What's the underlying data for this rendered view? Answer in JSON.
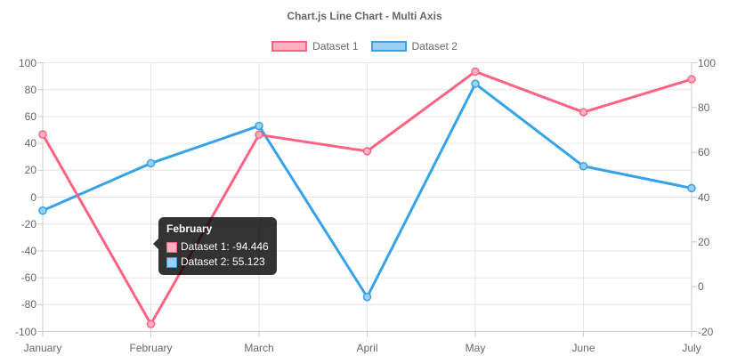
{
  "title": "Chart.js Line Chart - Multi Axis",
  "legend": {
    "items": [
      {
        "label": "Dataset 1",
        "border": "#ff6384",
        "fill": "#ffb1c1"
      },
      {
        "label": "Dataset 2",
        "border": "#36a2eb",
        "fill": "#9ad0f5"
      }
    ]
  },
  "tooltip": {
    "title": "February",
    "rows": [
      {
        "label": "Dataset 1: -94.446",
        "border": "#ff6384",
        "fill": "#ffb1c1"
      },
      {
        "label": "Dataset 2: 55.123",
        "border": "#36a2eb",
        "fill": "#9ad0f5"
      }
    ]
  },
  "chart_data": {
    "type": "line",
    "title": "Chart.js Line Chart - Multi Axis",
    "categories": [
      "January",
      "February",
      "March",
      "April",
      "May",
      "June",
      "July"
    ],
    "series": [
      {
        "name": "Dataset 1",
        "axis": "left",
        "color": "#ff6384",
        "fill": "#ffb1c1",
        "values": [
          46.7,
          -94.446,
          46.4,
          34.2,
          93.4,
          63.2,
          87.7
        ]
      },
      {
        "name": "Dataset 2",
        "axis": "right",
        "color": "#36a2eb",
        "fill": "#9ad0f5",
        "values": [
          34.0,
          55.123,
          71.8,
          -4.6,
          90.6,
          53.8,
          44.0
        ]
      }
    ],
    "left_axis": {
      "min": -100,
      "max": 100,
      "ticks": [
        100,
        80,
        60,
        40,
        20,
        0,
        -20,
        -40,
        -60,
        -80,
        -100
      ]
    },
    "right_axis": {
      "min": -20,
      "max": 100,
      "ticks": [
        100,
        80,
        60,
        40,
        20,
        0,
        -20
      ]
    },
    "grid": true,
    "legend_position": "top",
    "tooltip_point": {
      "category": "February",
      "dataset1": -94.446,
      "dataset2": 55.123
    }
  },
  "colors": {
    "text": "#666666",
    "grid": "#e6e6e6",
    "axis_border": "#cccccc",
    "tooltip_bg": "rgba(0,0,0,0.8)"
  }
}
